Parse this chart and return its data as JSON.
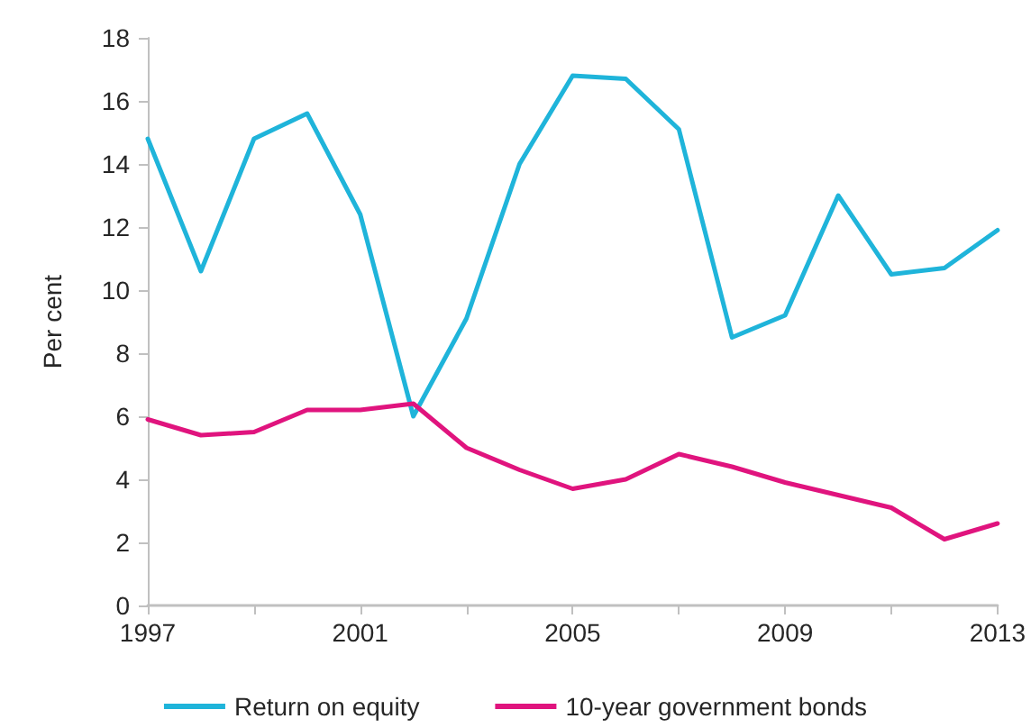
{
  "chart_data": {
    "type": "line",
    "ylabel": "Per cent",
    "x": [
      1997,
      1998,
      1999,
      2000,
      2001,
      2002,
      2003,
      2004,
      2005,
      2006,
      2007,
      2008,
      2009,
      2010,
      2011,
      2012,
      2013
    ],
    "series": [
      {
        "name": "Return on equity",
        "color": "#1fb4da",
        "values": [
          14.8,
          10.6,
          14.8,
          15.6,
          12.4,
          6.0,
          9.1,
          14.0,
          16.8,
          16.7,
          15.1,
          8.5,
          9.2,
          13.0,
          10.5,
          10.7,
          11.9
        ]
      },
      {
        "name": "10-year government bonds",
        "color": "#e0147e",
        "values": [
          5.9,
          5.4,
          5.5,
          6.2,
          6.2,
          6.4,
          5.0,
          4.3,
          3.7,
          4.0,
          4.8,
          4.4,
          3.9,
          3.5,
          3.1,
          2.1,
          2.6
        ]
      }
    ],
    "xlim": [
      1997,
      2013
    ],
    "xticks": [
      1997,
      {
        "value": 1999,
        "label": null
      },
      2001,
      {
        "value": 2003,
        "label": null
      },
      2005,
      {
        "value": 2007,
        "label": null
      },
      2009,
      {
        "value": 2011,
        "label": null
      },
      2013
    ],
    "ylim": [
      0,
      18
    ],
    "yticks": [
      0,
      2,
      4,
      6,
      8,
      10,
      12,
      14,
      16,
      18
    ],
    "legend": "bottom"
  }
}
